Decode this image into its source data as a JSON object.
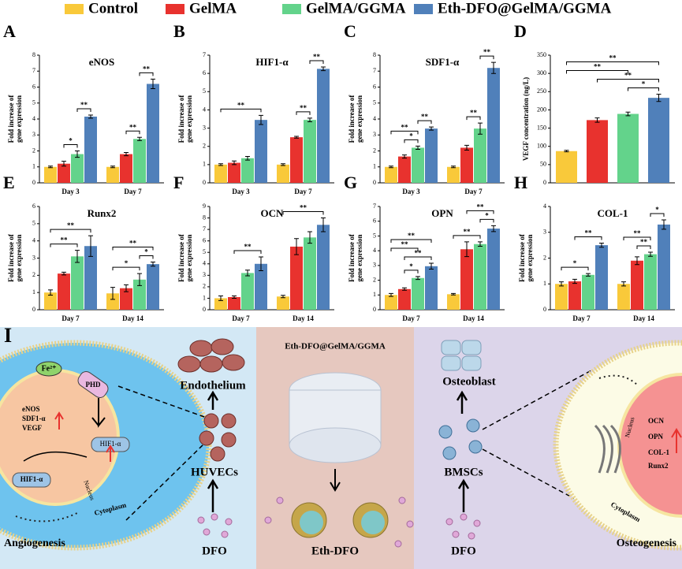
{
  "legend": [
    {
      "name": "Control",
      "color": "#f9c93a"
    },
    {
      "name": "GelMA",
      "color": "#e8322e"
    },
    {
      "name": "GelMA/GGMA",
      "color": "#63d38b"
    },
    {
      "name": "Eth-DFO@GelMA/GGMA",
      "color": "#5080ba"
    }
  ],
  "chart_data": [
    {
      "type": "bar",
      "panel": "A",
      "title": "eNOS",
      "ylabel": [
        "Fold increase of",
        "gene expression"
      ],
      "categories": [
        "Day 3",
        "Day 7"
      ],
      "ylim": [
        0,
        8
      ],
      "yticks": [
        0,
        1,
        2,
        3,
        4,
        5,
        6,
        7,
        8
      ],
      "series": [
        {
          "values": [
            1,
            1
          ],
          "errors": [
            0.05,
            0.05
          ]
        },
        {
          "values": [
            1.2,
            1.8
          ],
          "errors": [
            0.15,
            0.1
          ]
        },
        {
          "values": [
            1.8,
            2.75
          ],
          "errors": [
            0.2,
            0.1
          ]
        },
        {
          "values": [
            4.15,
            6.2
          ],
          "errors": [
            0.1,
            0.3
          ]
        }
      ],
      "annotations": [
        {
          "label": "*",
          "from": [
            0,
            1
          ],
          "to": [
            0,
            2
          ]
        },
        {
          "label": "**",
          "from": [
            0,
            2
          ],
          "to": [
            0,
            3
          ]
        },
        {
          "label": "**",
          "from": [
            1,
            1
          ],
          "to": [
            1,
            2
          ]
        },
        {
          "label": "**",
          "from": [
            1,
            2
          ],
          "to": [
            1,
            3
          ]
        }
      ]
    },
    {
      "type": "bar",
      "panel": "B",
      "title": "HIF1-α",
      "ylabel": [
        "Fold increase of",
        "gene expression"
      ],
      "categories": [
        "Day 3",
        "Day 7"
      ],
      "ylim": [
        0,
        7
      ],
      "yticks": [
        0,
        1,
        2,
        3,
        4,
        5,
        6,
        7
      ],
      "series": [
        {
          "values": [
            1,
            1
          ],
          "errors": [
            0.05,
            0.05
          ]
        },
        {
          "values": [
            1.1,
            2.5
          ],
          "errors": [
            0.1,
            0.05
          ]
        },
        {
          "values": [
            1.35,
            3.45
          ],
          "errors": [
            0.1,
            0.1
          ]
        },
        {
          "values": [
            3.45,
            6.25
          ],
          "errors": [
            0.25,
            0.1
          ]
        }
      ],
      "annotations": [
        {
          "label": "**",
          "from": [
            0,
            0
          ],
          "to": [
            0,
            3
          ]
        },
        {
          "label": "**",
          "from": [
            1,
            1
          ],
          "to": [
            1,
            2
          ]
        },
        {
          "label": "**",
          "from": [
            1,
            2
          ],
          "to": [
            1,
            3
          ]
        }
      ]
    },
    {
      "type": "bar",
      "panel": "C",
      "title": "SDF1-α",
      "ylabel": [
        "Fold increase of",
        "gene expression"
      ],
      "categories": [
        "Day 3",
        "Day 7"
      ],
      "ylim": [
        0,
        8
      ],
      "yticks": [
        0,
        1,
        2,
        3,
        4,
        5,
        6,
        7,
        8
      ],
      "series": [
        {
          "values": [
            1,
            1
          ],
          "errors": [
            0.05,
            0.05
          ]
        },
        {
          "values": [
            1.65,
            2.2
          ],
          "errors": [
            0.1,
            0.15
          ]
        },
        {
          "values": [
            2.2,
            3.4
          ],
          "errors": [
            0.1,
            0.35
          ]
        },
        {
          "values": [
            3.4,
            7.2
          ],
          "errors": [
            0.1,
            0.35
          ]
        }
      ],
      "annotations": [
        {
          "label": "*",
          "from": [
            0,
            1
          ],
          "to": [
            0,
            2
          ]
        },
        {
          "label": "**",
          "from": [
            0,
            0
          ],
          "to": [
            0,
            2
          ]
        },
        {
          "label": "**",
          "from": [
            0,
            2
          ],
          "to": [
            0,
            3
          ]
        },
        {
          "label": "**",
          "from": [
            1,
            1
          ],
          "to": [
            1,
            2
          ]
        },
        {
          "label": "**",
          "from": [
            1,
            2
          ],
          "to": [
            1,
            3
          ]
        }
      ]
    },
    {
      "type": "bar",
      "panel": "D",
      "ylabel": [
        "VEGF concentration (ng/L)"
      ],
      "categories": [
        null
      ],
      "ylim": [
        0,
        350
      ],
      "yticks": [
        0,
        50,
        100,
        150,
        200,
        250,
        300,
        350
      ],
      "series": [
        {
          "values": [
            87
          ],
          "errors": [
            2
          ]
        },
        {
          "values": [
            172
          ],
          "errors": [
            6
          ]
        },
        {
          "values": [
            189
          ],
          "errors": [
            5
          ]
        },
        {
          "values": [
            233
          ],
          "errors": [
            10
          ]
        }
      ],
      "annotations": [
        {
          "label": "*",
          "from": [
            0,
            2
          ],
          "to": [
            0,
            3
          ]
        },
        {
          "label": "**",
          "from": [
            0,
            1
          ],
          "to": [
            0,
            3
          ]
        },
        {
          "label": "**",
          "from": [
            0,
            0
          ],
          "to": [
            0,
            2
          ]
        },
        {
          "label": "**",
          "from": [
            0,
            0
          ],
          "to": [
            0,
            3
          ]
        }
      ]
    },
    {
      "type": "bar",
      "panel": "E",
      "title": "Runx2",
      "ylabel": [
        "Fold increase of",
        "gene expression"
      ],
      "categories": [
        "Day 7",
        "Day 14"
      ],
      "ylim": [
        0,
        6
      ],
      "yticks": [
        0,
        1,
        2,
        3,
        4,
        5,
        6
      ],
      "series": [
        {
          "values": [
            1,
            0.95
          ],
          "errors": [
            0.15,
            0.35
          ]
        },
        {
          "values": [
            2.1,
            1.25
          ],
          "errors": [
            0.08,
            0.2
          ]
        },
        {
          "values": [
            3.1,
            1.75
          ],
          "errors": [
            0.35,
            0.35
          ]
        },
        {
          "values": [
            3.7,
            2.65
          ],
          "errors": [
            0.6,
            0.12
          ]
        }
      ],
      "annotations": [
        {
          "label": "**",
          "from": [
            0,
            0
          ],
          "to": [
            0,
            2
          ]
        },
        {
          "label": "**",
          "from": [
            0,
            0
          ],
          "to": [
            0,
            3
          ]
        },
        {
          "label": "*",
          "from": [
            1,
            0
          ],
          "to": [
            1,
            2
          ]
        },
        {
          "label": "*",
          "from": [
            1,
            2
          ],
          "to": [
            1,
            3
          ]
        },
        {
          "label": "**",
          "from": [
            1,
            0
          ],
          "to": [
            1,
            3
          ]
        }
      ]
    },
    {
      "type": "bar",
      "panel": "F",
      "title": "OCN",
      "ylabel": [
        "Fold increase of",
        "gene expression"
      ],
      "categories": [
        "Day 7",
        "Day 14"
      ],
      "ylim": [
        0,
        9
      ],
      "yticks": [
        0,
        1,
        2,
        3,
        4,
        5,
        6,
        7,
        8,
        9
      ],
      "series": [
        {
          "values": [
            1,
            1.15
          ],
          "errors": [
            0.2,
            0.1
          ]
        },
        {
          "values": [
            1.1,
            5.5
          ],
          "errors": [
            0.1,
            0.7
          ]
        },
        {
          "values": [
            3.2,
            6.3
          ],
          "errors": [
            0.25,
            0.5
          ]
        },
        {
          "values": [
            4.0,
            7.4
          ],
          "errors": [
            0.6,
            0.6
          ]
        }
      ],
      "annotations": [
        {
          "label": "**",
          "from": [
            0,
            1
          ],
          "to": [
            0,
            3
          ]
        },
        {
          "label": "**",
          "from": [
            1,
            0
          ],
          "to": [
            1,
            3
          ]
        }
      ]
    },
    {
      "type": "bar",
      "panel": "G",
      "title": "OPN",
      "ylabel": [
        "Fold increase of",
        "gene expression"
      ],
      "categories": [
        "Day 7",
        "Day 14"
      ],
      "ylim": [
        0,
        7
      ],
      "yticks": [
        0,
        1,
        2,
        3,
        4,
        5,
        6,
        7
      ],
      "series": [
        {
          "values": [
            1,
            1.05
          ],
          "errors": [
            0.1,
            0.05
          ]
        },
        {
          "values": [
            1.4,
            4.1
          ],
          "errors": [
            0.08,
            0.5
          ]
        },
        {
          "values": [
            2.15,
            4.45
          ],
          "errors": [
            0.1,
            0.15
          ]
        },
        {
          "values": [
            2.95,
            5.5
          ],
          "errors": [
            0.2,
            0.2
          ]
        }
      ],
      "annotations": [
        {
          "label": "*",
          "from": [
            0,
            1
          ],
          "to": [
            0,
            2
          ]
        },
        {
          "label": "**",
          "from": [
            0,
            1
          ],
          "to": [
            0,
            3
          ]
        },
        {
          "label": "**",
          "from": [
            0,
            0
          ],
          "to": [
            0,
            2
          ]
        },
        {
          "label": "**",
          "from": [
            0,
            0
          ],
          "to": [
            0,
            3
          ]
        },
        {
          "label": "**",
          "from": [
            1,
            0
          ],
          "to": [
            1,
            2
          ]
        },
        {
          "label": "*",
          "from": [
            1,
            2
          ],
          "to": [
            1,
            3
          ]
        },
        {
          "label": "**",
          "from": [
            1,
            1
          ],
          "to": [
            1,
            3
          ]
        }
      ]
    },
    {
      "type": "bar",
      "panel": "H",
      "title": "COL-1",
      "ylabel": [
        "Fold increase of",
        "gene expression"
      ],
      "categories": [
        "Day 7",
        "Day 14"
      ],
      "ylim": [
        0,
        4
      ],
      "yticks": [
        0,
        1,
        2,
        3,
        4
      ],
      "series": [
        {
          "values": [
            1,
            1
          ],
          "errors": [
            0.08,
            0.08
          ]
        },
        {
          "values": [
            1.1,
            1.9
          ],
          "errors": [
            0.08,
            0.15
          ]
        },
        {
          "values": [
            1.35,
            2.15
          ],
          "errors": [
            0.05,
            0.08
          ]
        },
        {
          "values": [
            2.5,
            3.3
          ],
          "errors": [
            0.08,
            0.18
          ]
        }
      ],
      "annotations": [
        {
          "label": "*",
          "from": [
            0,
            0
          ],
          "to": [
            0,
            2
          ]
        },
        {
          "label": "**",
          "from": [
            0,
            1
          ],
          "to": [
            0,
            3
          ]
        },
        {
          "label": "**",
          "from": [
            1,
            1
          ],
          "to": [
            1,
            2
          ]
        },
        {
          "label": "**",
          "from": [
            1,
            0
          ],
          "to": [
            1,
            2
          ]
        },
        {
          "label": "*",
          "from": [
            1,
            2
          ],
          "to": [
            1,
            3
          ]
        }
      ]
    }
  ],
  "diagram": {
    "panel": "I",
    "left": {
      "top": "Endothelium",
      "cells": "HUVECs",
      "drug": "DFO",
      "caption": "Angiogenesis",
      "fe": "Fe²⁺",
      "phd": "PHD",
      "genes": [
        "eNOS",
        "SDF1-α",
        "VEGF"
      ],
      "hif_nucleus": "HIF1-α",
      "hif_cyto": "HIF1-α",
      "nucleus": "Nucleus",
      "cytoplasm": "Cytoplasm"
    },
    "middle": {
      "top": "Eth-DFO@GelMA/GGMA",
      "caption": "Eth-DFO"
    },
    "right": {
      "top": "Osteoblast",
      "cells": "BMSCs",
      "drug": "DFO",
      "caption": "Osteogenesis",
      "genes": [
        "OCN",
        "OPN",
        "COL-1",
        "Runx2"
      ],
      "nucleus": "Nucleus",
      "cytoplasm": "Cytoplasm"
    }
  }
}
